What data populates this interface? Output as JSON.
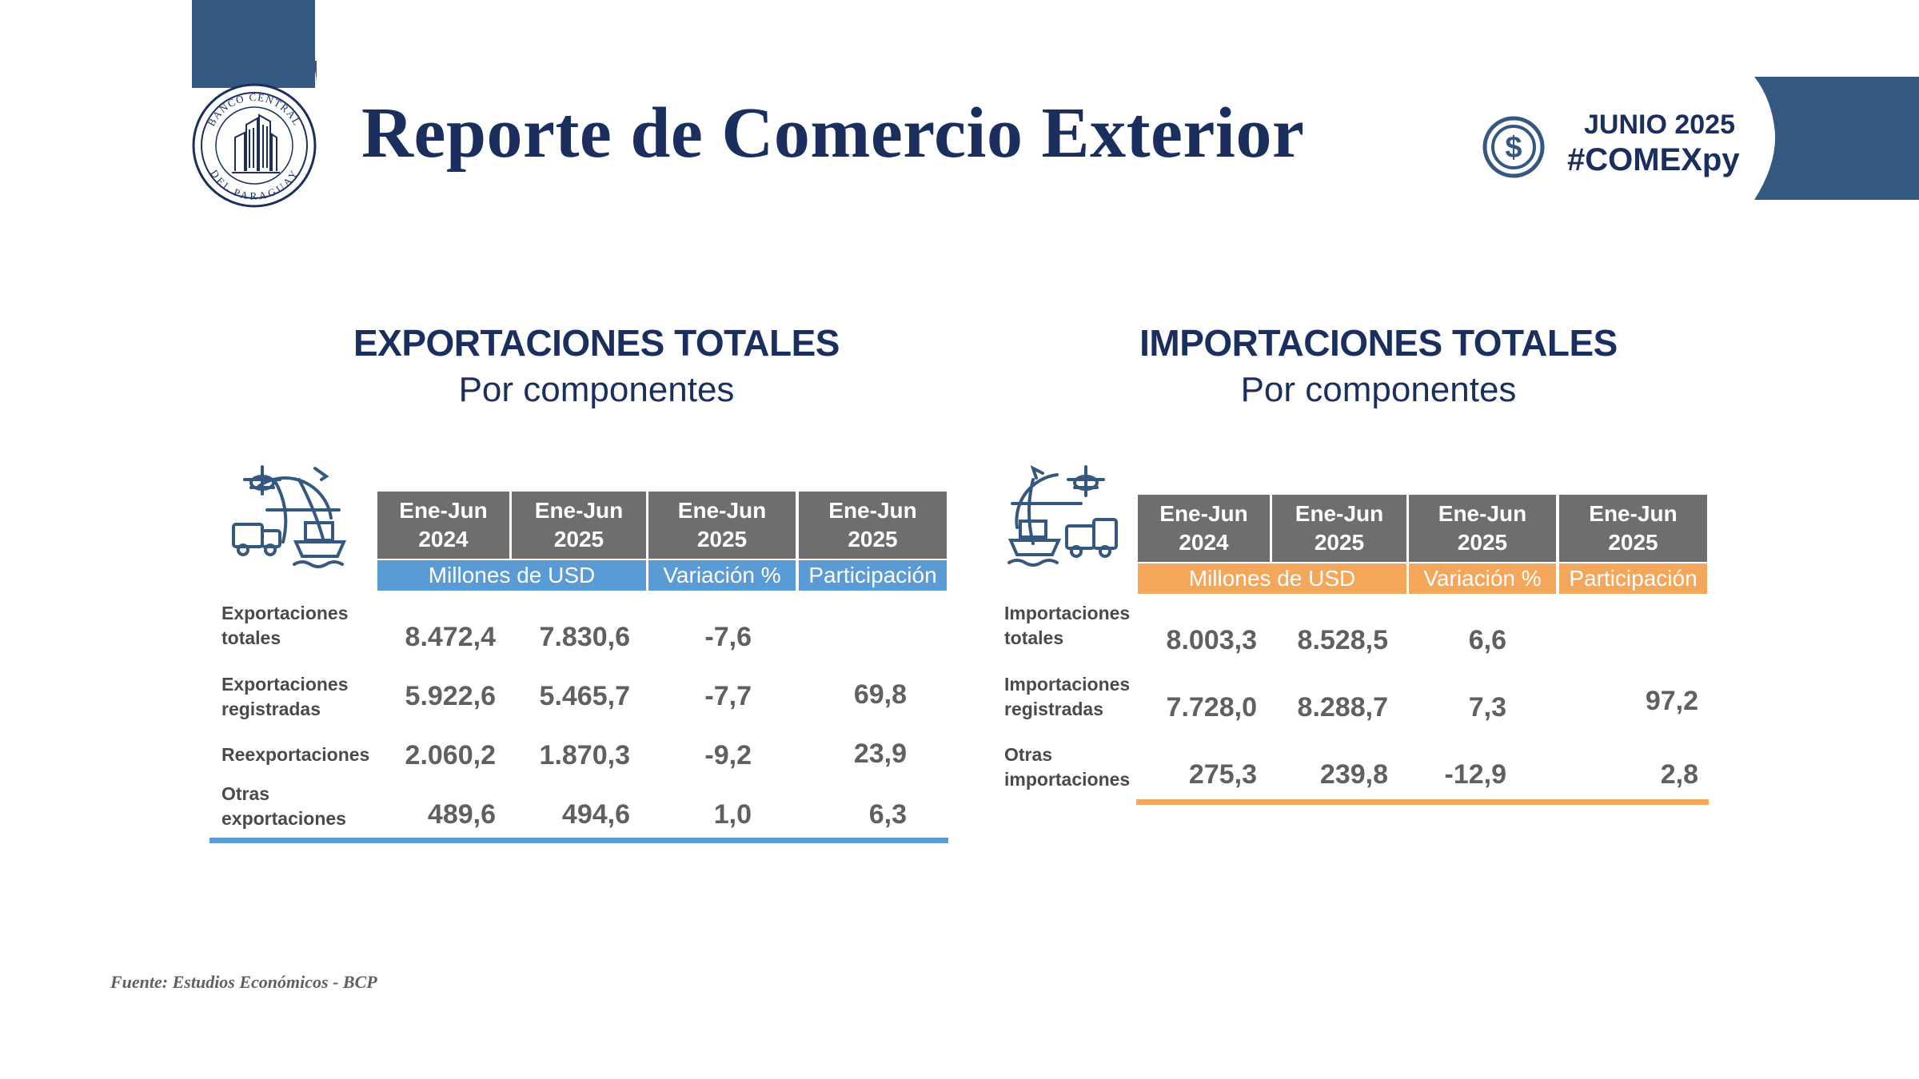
{
  "header": {
    "title": "Reporte de Comercio Exterior",
    "logo_text_top": "BANCO CENTRAL",
    "logo_text_bottom": "DEL PARAGUAY",
    "date": "JUNIO 2025",
    "hashtag": "#COMEXpy"
  },
  "colors": {
    "navy": "#1b2f5e",
    "band": "#34587f",
    "header_gray": "#6e6e70",
    "export_accent": "#5b9bd5",
    "import_accent": "#f4a65a"
  },
  "exports": {
    "title": "EXPORTACIONES TOTALES",
    "subtitle": "Por componentes",
    "icon": "global-trade-icon",
    "columns": [
      {
        "label": "Ene-Jun\n2024"
      },
      {
        "label": "Ene-Jun\n2025"
      },
      {
        "label": "Ene-Jun\n2025"
      },
      {
        "label": "Ene-Jun\n2025"
      }
    ],
    "subheaders": [
      "Millones de USD",
      "Variación %",
      "Participación %"
    ],
    "rows": [
      {
        "label": "Exportaciones\ntotales",
        "v2024": "8.472,4",
        "v2025": "7.830,6",
        "var": "-7,6",
        "part": ""
      },
      {
        "label": "Exportaciones\nregistradas",
        "v2024": "5.922,6",
        "v2025": "5.465,7",
        "var": "-7,7",
        "part": "69,8"
      },
      {
        "label": "Reexportaciones",
        "v2024": "2.060,2",
        "v2025": "1.870,3",
        "var": "-9,2",
        "part": "23,9"
      },
      {
        "label": "Otras\nexportaciones",
        "v2024": "489,6",
        "v2025": "494,6",
        "var": "1,0",
        "part": "6,3"
      }
    ]
  },
  "imports": {
    "title": "IMPORTACIONES TOTALES",
    "subtitle": "Por componentes",
    "icon": "global-trade-icon",
    "columns": [
      {
        "label": "Ene-Jun\n2024"
      },
      {
        "label": "Ene-Jun\n2025"
      },
      {
        "label": "Ene-Jun\n2025"
      },
      {
        "label": "Ene-Jun\n2025"
      }
    ],
    "subheaders": [
      "Millones de USD",
      "Variación %",
      "Participación %"
    ],
    "rows": [
      {
        "label": "Importaciones\ntotales",
        "v2024": "8.003,3",
        "v2025": "8.528,5",
        "var": "6,6",
        "part": ""
      },
      {
        "label": "Importaciones\nregistradas",
        "v2024": "7.728,0",
        "v2025": "8.288,7",
        "var": "7,3",
        "part": "97,2"
      },
      {
        "label": "Otras\nimportaciones",
        "v2024": "275,3",
        "v2025": "239,8",
        "var": "-12,9",
        "part": "2,8"
      }
    ]
  },
  "footer": {
    "source": "Fuente: Estudios Económicos - BCP"
  }
}
